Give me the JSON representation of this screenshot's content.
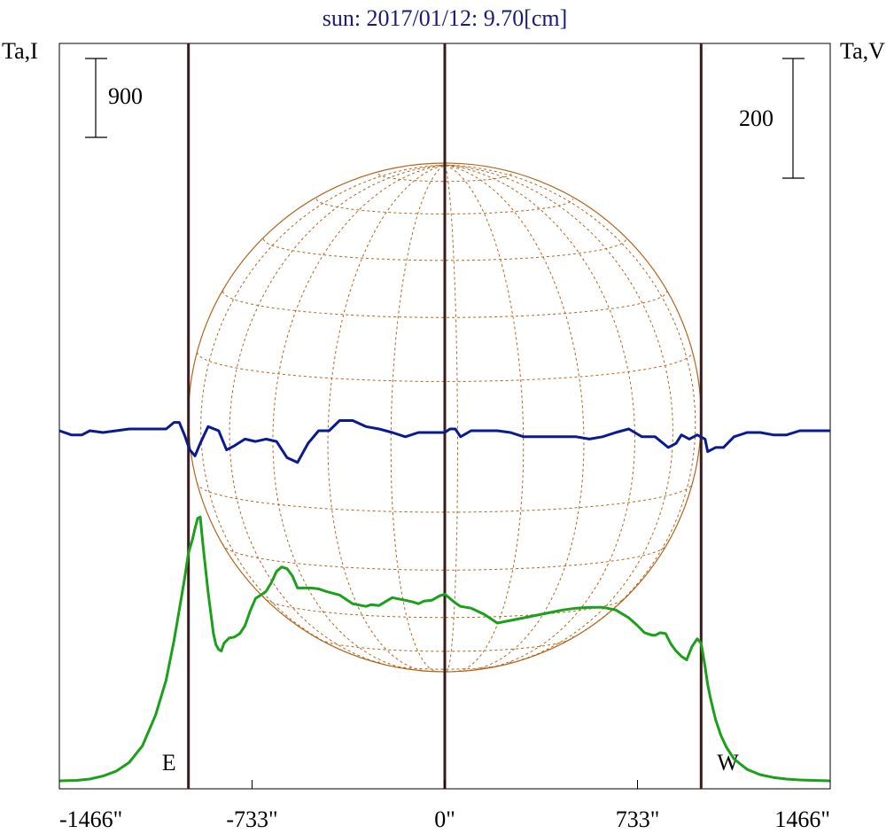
{
  "chart_data": {
    "type": "line",
    "title": "sun: 2017/01/12: 9.70[cm]",
    "left_axis_label": "Ta,I",
    "right_axis_label": "Ta,V",
    "scale_bar_left": {
      "label": "900",
      "value": 900
    },
    "scale_bar_right": {
      "label": "200",
      "value": 200
    },
    "x_range": [
      -1466,
      1466
    ],
    "x_ticks": [
      {
        "value": -1466,
        "label": "-1466\""
      },
      {
        "value": -733,
        "label": "-733\""
      },
      {
        "value": 0,
        "label": "0\""
      },
      {
        "value": 733,
        "label": "733\""
      },
      {
        "value": 1466,
        "label": "1466\""
      }
    ],
    "limb_markers": [
      {
        "label": "E",
        "x": -975
      },
      {
        "label": "W",
        "x": 975
      }
    ],
    "center_marker_x": 0,
    "solar_disk": {
      "radius_arcsec": 975,
      "grid": "dashed latitude/longitude lines",
      "color": "#b5651d"
    },
    "series": [
      {
        "name": "",
        "axis": "left",
        "color": "#1aa01a",
        "x": [
          -1466,
          -1400,
          -1350,
          -1300,
          -1250,
          -1200,
          -1150,
          -1100,
          -1060,
          -1030,
          -1010,
          -990,
          -975,
          -960,
          -950,
          -940,
          -930,
          -920,
          -900,
          -880,
          -870,
          -860,
          -850,
          -840,
          -820,
          -800,
          -780,
          -760,
          -740,
          -720,
          -700,
          -680,
          -660,
          -640,
          -620,
          -600,
          -580,
          -560,
          -540,
          -510,
          -480,
          -450,
          -400,
          -350,
          -300,
          -280,
          -250,
          -200,
          -150,
          -120,
          -100,
          -80,
          -50,
          -20,
          0,
          20,
          40,
          60,
          100,
          150,
          200,
          300,
          400,
          450,
          500,
          550,
          600,
          650,
          700,
          730,
          760,
          790,
          800,
          820,
          840,
          860,
          880,
          900,
          920,
          940,
          960,
          975,
          990,
          1000,
          1010,
          1030,
          1050,
          1070,
          1100,
          1150,
          1200,
          1250,
          1300,
          1350,
          1400,
          1466
        ],
        "y": [
          0,
          5,
          20,
          55,
          110,
          210,
          400,
          750,
          1150,
          1600,
          1950,
          2300,
          2600,
          2750,
          2880,
          2995,
          3010,
          2700,
          2150,
          1680,
          1550,
          1500,
          1480,
          1570,
          1630,
          1640,
          1680,
          1770,
          1940,
          2080,
          2120,
          2160,
          2260,
          2390,
          2440,
          2420,
          2340,
          2200,
          2200,
          2200,
          2190,
          2160,
          2120,
          2020,
          1990,
          2010,
          2000,
          2090,
          2060,
          2040,
          2020,
          2050,
          2060,
          2110,
          2130,
          2080,
          2030,
          1990,
          1970,
          1900,
          1800,
          1860,
          1920,
          1950,
          1970,
          1980,
          1980,
          1950,
          1860,
          1780,
          1690,
          1660,
          1660,
          1690,
          1680,
          1560,
          1480,
          1420,
          1380,
          1530,
          1620,
          1570,
          1300,
          1100,
          950,
          700,
          520,
          390,
          250,
          130,
          70,
          38,
          20,
          10,
          5,
          0
        ]
      },
      {
        "name": "",
        "axis": "right",
        "color": "#0a1a90",
        "x": [
          -1466,
          -1420,
          -1380,
          -1350,
          -1300,
          -1250,
          -1200,
          -1150,
          -1100,
          -1060,
          -1030,
          -1010,
          -990,
          -970,
          -950,
          -930,
          -900,
          -860,
          -830,
          -800,
          -760,
          -720,
          -680,
          -640,
          -600,
          -560,
          -520,
          -480,
          -440,
          -400,
          -350,
          -300,
          -250,
          -200,
          -150,
          -100,
          -50,
          0,
          20,
          40,
          60,
          100,
          150,
          200,
          250,
          300,
          350,
          400,
          450,
          500,
          550,
          600,
          650,
          700,
          750,
          800,
          850,
          880,
          900,
          930,
          960,
          990,
          1000,
          1030,
          1060,
          1100,
          1150,
          1200,
          1250,
          1300,
          1350,
          1400,
          1466
        ],
        "y": [
          0,
          -7,
          -7,
          0,
          -3,
          0,
          3,
          3,
          3,
          3,
          14,
          14,
          -7,
          -32,
          -42,
          -21,
          7,
          0,
          -32,
          -25,
          -14,
          -18,
          -14,
          -18,
          -45,
          -53,
          -21,
          0,
          0,
          17,
          17,
          7,
          3,
          -3,
          -10,
          -3,
          -3,
          -3,
          3,
          3,
          -10,
          0,
          0,
          0,
          -3,
          -10,
          -10,
          -10,
          -10,
          -10,
          -14,
          -10,
          -3,
          3,
          -10,
          -10,
          -28,
          -21,
          -7,
          -14,
          -7,
          -14,
          -35,
          -28,
          -28,
          -10,
          -3,
          -3,
          -7,
          -7,
          0,
          0,
          0
        ]
      }
    ]
  }
}
